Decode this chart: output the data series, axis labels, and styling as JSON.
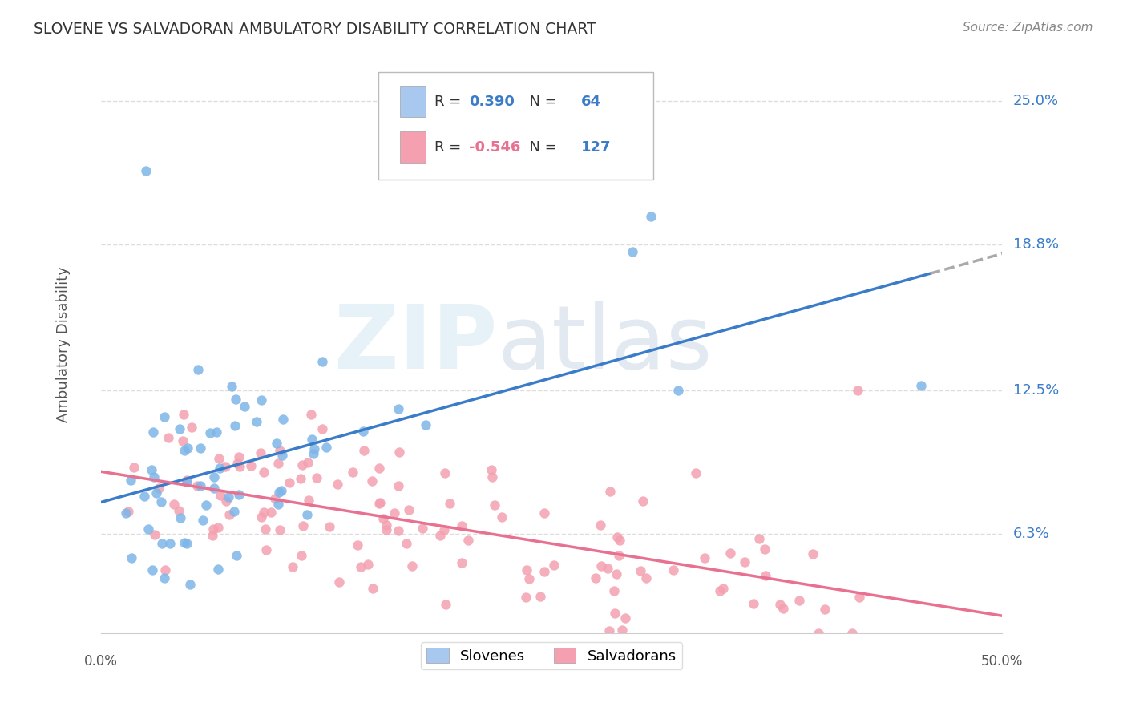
{
  "title": "SLOVENE VS SALVADORAN AMBULATORY DISABILITY CORRELATION CHART",
  "source": "Source: ZipAtlas.com",
  "ylabel": "Ambulatory Disability",
  "right_yticks": [
    0.063,
    0.125,
    0.188,
    0.25
  ],
  "right_ytick_labels": [
    "6.3%",
    "12.5%",
    "18.8%",
    "25.0%"
  ],
  "xlim": [
    0.0,
    0.5
  ],
  "ylim": [
    0.02,
    0.27
  ],
  "slovene_R": 0.39,
  "slovene_N": 64,
  "salvadoran_R": -0.546,
  "salvadoran_N": 127,
  "slovene_dot_color": "#7EB6E8",
  "salvadoran_dot_color": "#F4A0B0",
  "trend_slovene_color": "#3A7CC8",
  "trend_salvadoran_color": "#E87090",
  "trend_dashed_color": "#AAAAAA",
  "background_color": "#FFFFFF",
  "grid_color": "#DDDDDD",
  "title_color": "#333333",
  "source_color": "#888888",
  "legend_box_slovene": "#A8C8F0",
  "legend_box_salvadoran": "#F4A0B0",
  "slovene_seed": 42,
  "salvadoran_seed": 99
}
